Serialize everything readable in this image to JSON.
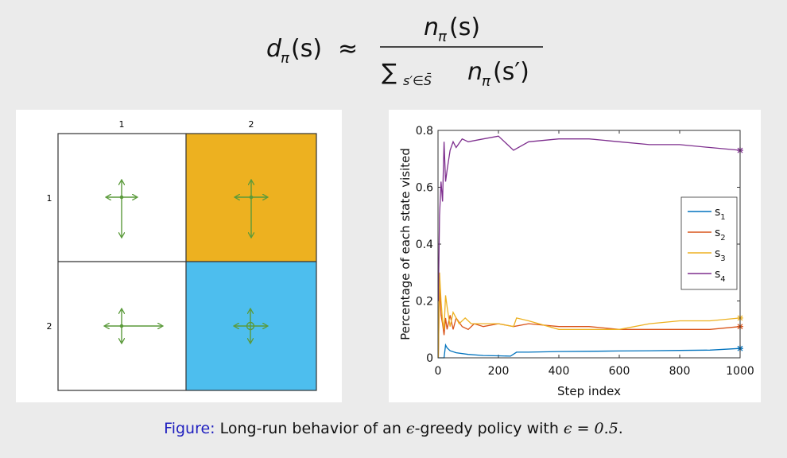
{
  "formula": {
    "lhs_d": "d",
    "lhs_sub": "π",
    "lhs_arg": "(s)",
    "approx": "≈",
    "num_n": "n",
    "num_sub": "π",
    "num_arg": "(s)",
    "den_sum": "∑",
    "den_sub": "s′∈S̄",
    "den_n": "n",
    "den_nsub": "π",
    "den_arg": "(s′)"
  },
  "grid": {
    "col_labels": [
      "1",
      "2"
    ],
    "row_labels": [
      "1",
      "2"
    ],
    "cell_colors": {
      "forbidden": "#edb120",
      "target": "#4dbeee",
      "normal": "#ffffff"
    },
    "arrow_color": "#5a9a3a"
  },
  "chart_data": {
    "type": "line",
    "xlabel": "Step index",
    "ylabel": "Percentage of each state visited",
    "xlim": [
      0,
      1000
    ],
    "ylim": [
      0,
      0.8
    ],
    "xticks": [
      "0",
      "200",
      "400",
      "600",
      "800",
      "1000"
    ],
    "yticks": [
      "0",
      "0.2",
      "0.4",
      "0.6",
      "0.8"
    ],
    "legend_position": "right",
    "series": [
      {
        "name": "s1",
        "label_base": "s",
        "label_sub": "1",
        "color": "#0072bd",
        "x": [
          1,
          10,
          20,
          25,
          30,
          40,
          60,
          100,
          150,
          200,
          240,
          260,
          300,
          400,
          500,
          600,
          700,
          800,
          900,
          1000
        ],
        "y": [
          0.0,
          0.0,
          0.0,
          0.045,
          0.035,
          0.025,
          0.018,
          0.012,
          0.008,
          0.007,
          0.006,
          0.02,
          0.02,
          0.022,
          0.023,
          0.024,
          0.025,
          0.026,
          0.027,
          0.033
        ]
      },
      {
        "name": "s2",
        "label_base": "s",
        "label_sub": "2",
        "color": "#d95319",
        "x": [
          1,
          5,
          10,
          15,
          20,
          25,
          30,
          40,
          50,
          60,
          80,
          100,
          120,
          150,
          200,
          250,
          300,
          400,
          500,
          600,
          700,
          800,
          900,
          1000
        ],
        "y": [
          0.0,
          0.25,
          0.15,
          0.12,
          0.08,
          0.14,
          0.1,
          0.15,
          0.1,
          0.14,
          0.11,
          0.1,
          0.12,
          0.11,
          0.12,
          0.11,
          0.12,
          0.11,
          0.11,
          0.1,
          0.1,
          0.1,
          0.1,
          0.11
        ]
      },
      {
        "name": "s3",
        "label_base": "s",
        "label_sub": "3",
        "color": "#edb120",
        "x": [
          1,
          5,
          10,
          15,
          20,
          25,
          30,
          40,
          50,
          70,
          90,
          110,
          150,
          200,
          250,
          260,
          300,
          400,
          500,
          600,
          700,
          800,
          900,
          1000
        ],
        "y": [
          0.0,
          0.3,
          0.2,
          0.13,
          0.1,
          0.22,
          0.18,
          0.11,
          0.16,
          0.12,
          0.14,
          0.12,
          0.12,
          0.12,
          0.11,
          0.14,
          0.13,
          0.1,
          0.1,
          0.1,
          0.12,
          0.13,
          0.13,
          0.14
        ]
      },
      {
        "name": "s4",
        "label_base": "s",
        "label_sub": "4",
        "color": "#7e2f8e",
        "x": [
          1,
          5,
          10,
          15,
          20,
          25,
          30,
          40,
          50,
          60,
          80,
          100,
          150,
          200,
          250,
          300,
          400,
          500,
          600,
          700,
          800,
          900,
          1000
        ],
        "y": [
          0.2,
          0.5,
          0.62,
          0.55,
          0.76,
          0.62,
          0.66,
          0.73,
          0.76,
          0.74,
          0.77,
          0.76,
          0.77,
          0.78,
          0.73,
          0.76,
          0.77,
          0.77,
          0.76,
          0.75,
          0.75,
          0.74,
          0.73
        ]
      }
    ]
  },
  "caption": {
    "label": "Figure:",
    "text_before": "Long-run behavior of an ",
    "epsilon": "ϵ",
    "text_middle": "-greedy policy with ",
    "equation": "ϵ = 0.5",
    "text_after": "."
  }
}
